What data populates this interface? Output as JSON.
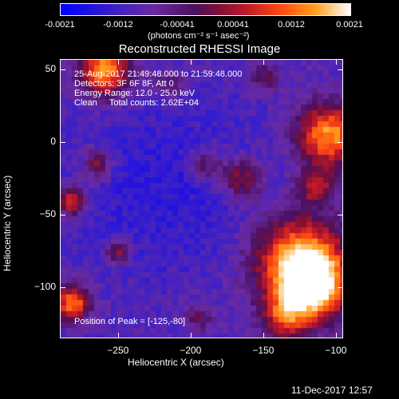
{
  "colorbar": {
    "ticks": [
      "-0.0021",
      "-0.0012",
      "-0.00041",
      "0.00041",
      "0.0012",
      "0.0021"
    ],
    "units": "(photons cm⁻² s⁻¹ asec⁻²)"
  },
  "chart_data": {
    "type": "heatmap",
    "title": "Reconstructed RHESSI Image",
    "xlabel": "Heliocentric X (arcsec)",
    "ylabel": "Heliocentric Y (arcsec)",
    "xlim": [
      -290,
      -95
    ],
    "ylim": [
      -135,
      57
    ],
    "xticks": [
      -250,
      -200,
      -150,
      -100
    ],
    "yticks": [
      50,
      0,
      -50,
      -100
    ],
    "xtick_labels": [
      "−250",
      "−200",
      "−150",
      "−100"
    ],
    "ytick_labels": [
      "50",
      "0",
      "−50",
      "−100"
    ],
    "color_range": [
      -0.0021,
      0.0021
    ],
    "peak": [
      -125,
      -80
    ]
  },
  "info": {
    "line1": "25-Aug-2017 21:49:48.000 to 21:59:48.000",
    "line2": "Detectors: 3F 6F 8F, Att 0",
    "line3": "Energy Range: 12.0 - 25.0 keV",
    "line4": "Clean     Total counts: 2.62E+04",
    "peak_label": "Position of Peak = [-125,-80]"
  },
  "footer": "11-Dec-2017 12:57"
}
